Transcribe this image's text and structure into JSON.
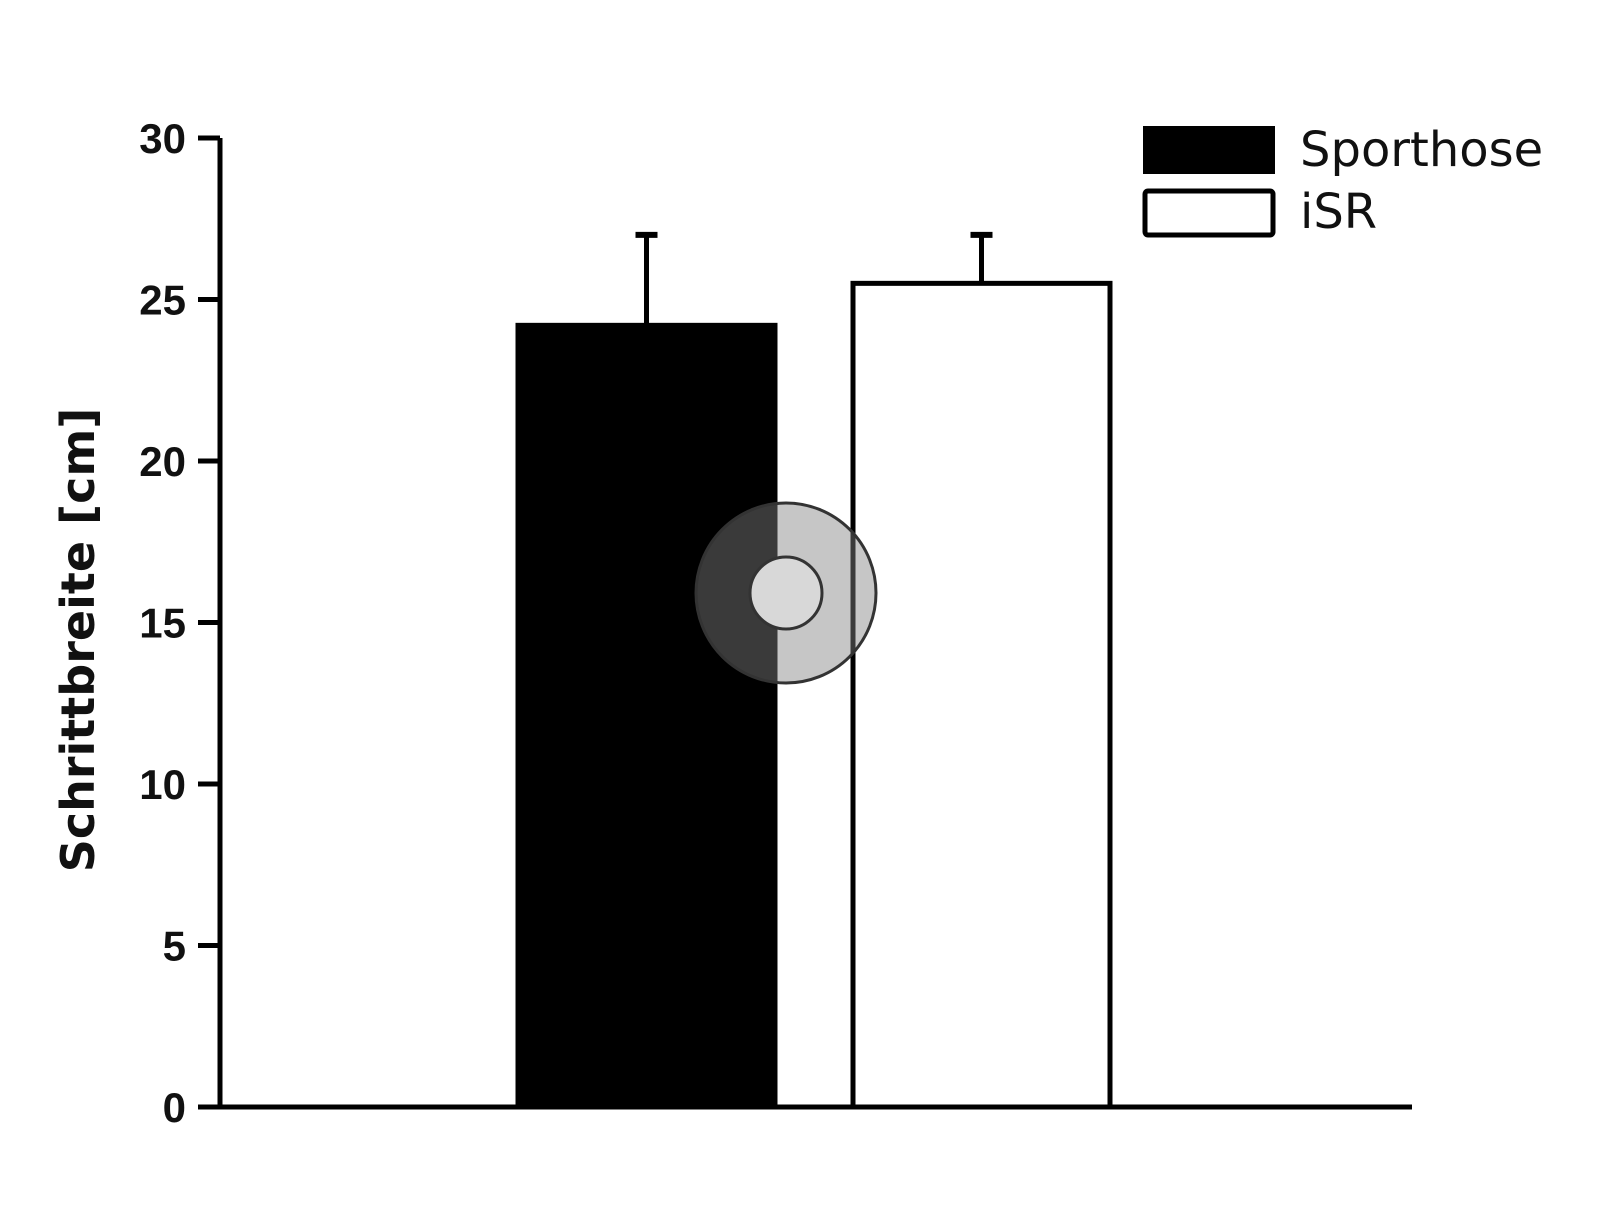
{
  "chart_data": {
    "type": "bar",
    "categories": [
      "Sporthose",
      "iSR"
    ],
    "series": [
      {
        "name": "Sporthose",
        "value": 24.2,
        "error": 2.8,
        "fill": "#000000"
      },
      {
        "name": "iSR",
        "value": 25.5,
        "error": 1.5,
        "fill": "#ffffff"
      }
    ],
    "title": "",
    "xlabel": "",
    "ylabel": "Schrittbreite [cm]",
    "ylim": [
      0,
      30
    ],
    "yticks": [
      0,
      5,
      10,
      15,
      20,
      25,
      30
    ],
    "ytick_labels": [
      "0",
      "5",
      "10",
      "15",
      "20",
      "25",
      "30"
    ],
    "grid": false,
    "legend_position": "top-right",
    "colors": {
      "axis": "#000000",
      "bar_outline": "#000000"
    }
  },
  "overlay": {
    "cursor": "click-target-indicator"
  }
}
